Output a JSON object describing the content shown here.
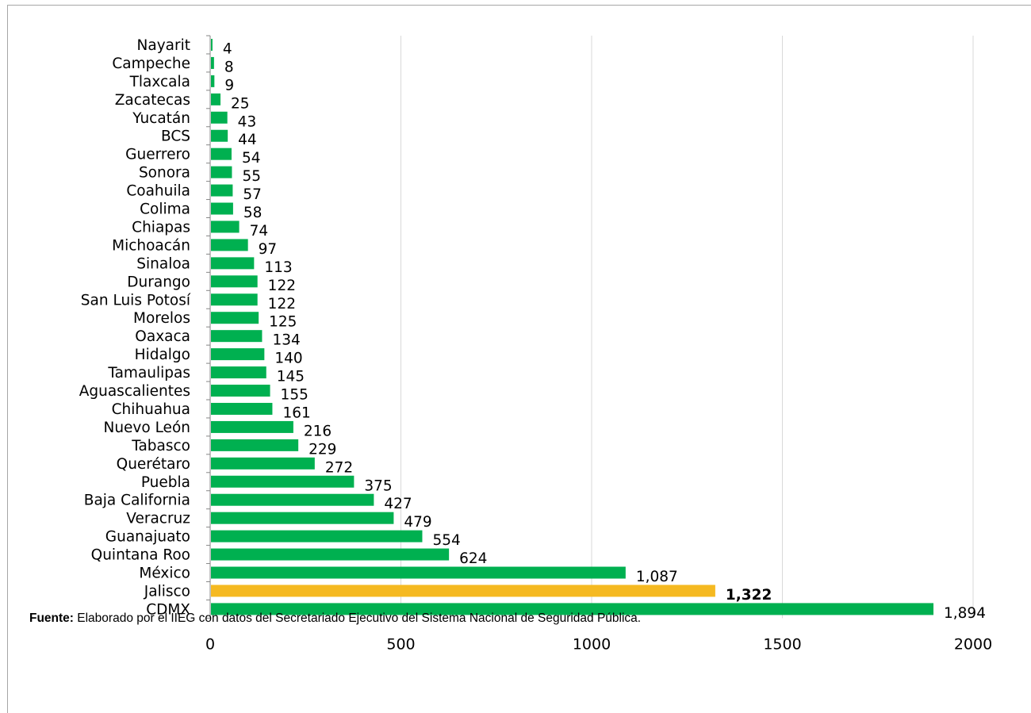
{
  "source": {
    "label": "Fuente:",
    "text": " Elaborado por el IIEG con datos del Secretariado Ejecutivo del Sistema Nacional de Seguridad Pública."
  },
  "colors": {
    "default_bar": "#00b050",
    "highlight_bar": "#f5b921",
    "gridline": "#d9d9d9",
    "axis": "#868686"
  },
  "chart_data": {
    "type": "bar",
    "orientation": "horizontal",
    "title": "",
    "xlabel": "",
    "ylabel": "",
    "xlim": [
      0,
      2000
    ],
    "x_ticks": [
      0,
      500,
      1000,
      1500,
      2000
    ],
    "grid": true,
    "legend": "none",
    "highlight": "Jalisco",
    "categories": [
      "Nayarit",
      "Campeche",
      "Tlaxcala",
      "Zacatecas",
      "Yucatán",
      "BCS",
      "Guerrero",
      "Sonora",
      "Coahuila",
      "Colima",
      "Chiapas",
      "Michoacán",
      "Sinaloa",
      "Durango",
      "San Luis Potosí",
      "Morelos",
      "Oaxaca",
      "Hidalgo",
      "Tamaulipas",
      "Aguascalientes",
      "Chihuahua",
      "Nuevo León",
      "Tabasco",
      "Querétaro",
      "Puebla",
      "Baja California",
      "Veracruz",
      "Guanajuato",
      "Quintana Roo",
      "México",
      "Jalisco",
      "CDMX"
    ],
    "values": [
      4,
      8,
      9,
      25,
      43,
      44,
      54,
      55,
      57,
      58,
      74,
      97,
      113,
      122,
      122,
      125,
      134,
      140,
      145,
      155,
      161,
      216,
      229,
      272,
      375,
      427,
      479,
      554,
      624,
      1087,
      1322,
      1894
    ],
    "value_labels": [
      "4",
      "8",
      "9",
      "25",
      "43",
      "44",
      "54",
      "55",
      "57",
      "58",
      "74",
      "97",
      "113",
      "122",
      "122",
      "125",
      "134",
      "140",
      "145",
      "155",
      "161",
      "216",
      "229",
      "272",
      "375",
      "427",
      "479",
      "554",
      "624",
      "1,087",
      "1,322",
      "1,894"
    ]
  }
}
